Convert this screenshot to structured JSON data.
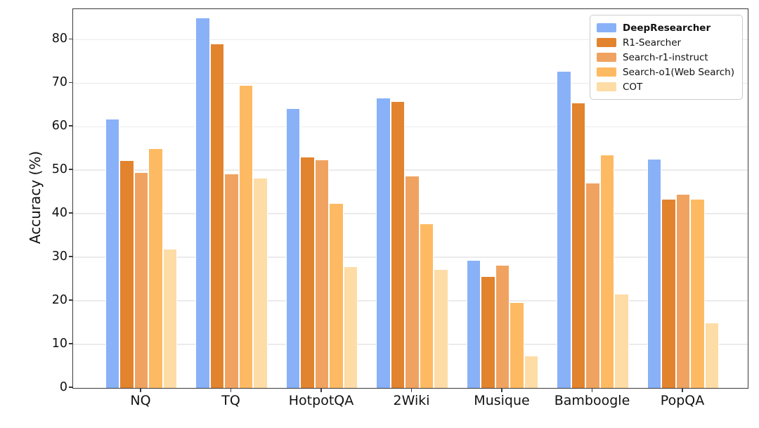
{
  "chart_data": {
    "type": "bar",
    "title": "",
    "xlabel": "",
    "ylabel": "Accuracy (%)",
    "ylim": [
      0,
      87
    ],
    "yticks": [
      0,
      10,
      20,
      30,
      40,
      50,
      60,
      70,
      80
    ],
    "grid": "horizontal",
    "legend_position": "top-right",
    "categories": [
      "NQ",
      "TQ",
      "HotpotQA",
      "2Wiki",
      "Musique",
      "Bamboogle",
      "PopQA"
    ],
    "series": [
      {
        "name": "DeepResearcher",
        "bold": true,
        "color": "#89B1F8",
        "values": [
          61.9,
          85.0,
          64.3,
          66.6,
          29.3,
          72.8,
          52.7
        ]
      },
      {
        "name": "R1-Searcher",
        "bold": false,
        "color": "#E2832E",
        "values": [
          52.3,
          79.1,
          53.1,
          65.8,
          25.6,
          65.6,
          43.4
        ]
      },
      {
        "name": "Search-r1-instruct",
        "bold": false,
        "color": "#F0A360",
        "values": [
          49.6,
          49.2,
          52.5,
          48.8,
          28.3,
          47.2,
          44.5
        ]
      },
      {
        "name": "Search-o1(Web Search)",
        "bold": false,
        "color": "#FEBA62",
        "values": [
          55.1,
          69.5,
          42.4,
          37.7,
          19.7,
          53.6,
          43.4
        ]
      },
      {
        "name": "COT",
        "bold": false,
        "color": "#FEDCA6",
        "values": [
          32.0,
          48.2,
          27.9,
          27.3,
          7.4,
          21.6,
          15.0
        ]
      }
    ],
    "colors": {
      "background": "#ffffff",
      "gridline": "#ebebeb",
      "spine": "#3a3a3a",
      "text": "#111111"
    }
  }
}
